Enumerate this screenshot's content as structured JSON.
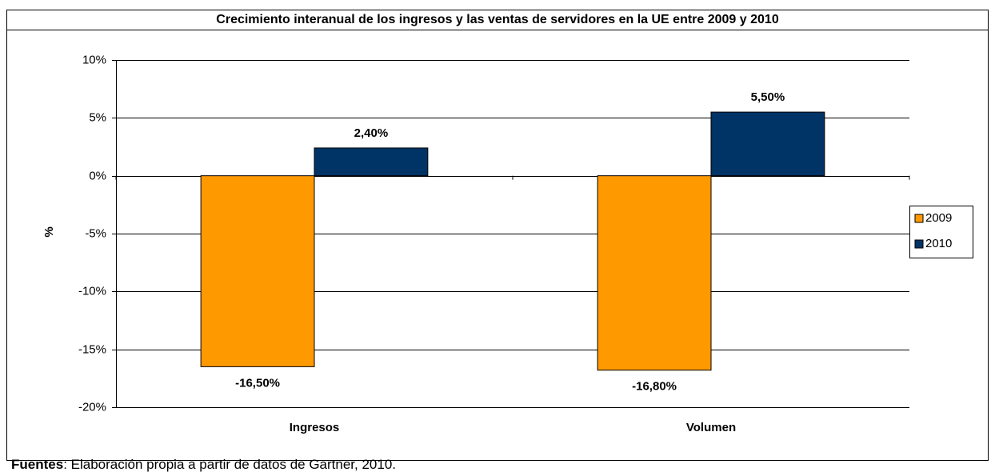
{
  "chart_data": {
    "type": "bar",
    "title": "Crecimiento interanual de los ingresos y las ventas de servidores en la UE entre 2009 y 2010",
    "ylabel": "%",
    "categories": [
      "Ingresos",
      "Volumen"
    ],
    "series": [
      {
        "name": "2009",
        "color": "#ff9900",
        "values": [
          -16.5,
          -16.8
        ],
        "value_labels": [
          "-16,50%",
          "-16,80%"
        ]
      },
      {
        "name": "2010",
        "color": "#003366",
        "values": [
          2.4,
          5.5
        ],
        "value_labels": [
          "2,40%",
          "5,50%"
        ]
      }
    ],
    "ylim": [
      -20,
      10
    ],
    "yticks": [
      {
        "value": -20,
        "label": "-20%"
      },
      {
        "value": -15,
        "label": "-15%"
      },
      {
        "value": -10,
        "label": "-10%"
      },
      {
        "value": -5,
        "label": "-5%"
      },
      {
        "value": 0,
        "label": "0%"
      },
      {
        "value": 5,
        "label": "5%"
      },
      {
        "value": 10,
        "label": "10%"
      }
    ],
    "grid": true,
    "legend": "right"
  },
  "footer": {
    "label": "Fuentes",
    "text": ": Elaboración propia a partir de datos de Gartner, 2010."
  }
}
